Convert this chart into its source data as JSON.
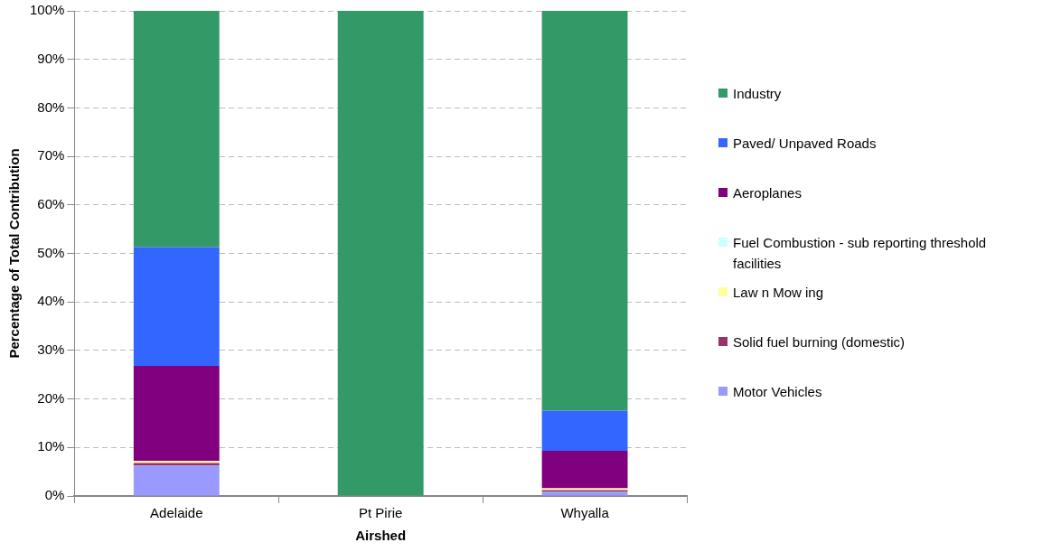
{
  "chart_data": {
    "type": "bar",
    "stacked": true,
    "xlabel": "Airshed",
    "ylabel": "Percentage of Total Contribution",
    "categories": [
      "Adelaide",
      "Pt Pirie",
      "Whyalla"
    ],
    "series": [
      {
        "name": "Motor Vehicles",
        "color": "#9999ff",
        "values": [
          6.3,
          0,
          0.9
        ]
      },
      {
        "name": "Solid fuel burning (domestic)",
        "color": "#993366",
        "values": [
          0.5,
          0,
          0.3
        ]
      },
      {
        "name": "Law n Mow ing",
        "color": "#ffff99",
        "values": [
          0.4,
          0,
          0.4
        ]
      },
      {
        "name": "Fuel Combustion - sub reporting threshold facilities",
        "color": "#ccffff",
        "values": [
          0,
          0,
          0
        ]
      },
      {
        "name": "Aeroplanes",
        "color": "#800080",
        "values": [
          19.6,
          0,
          7.7
        ]
      },
      {
        "name": "Paved/ Unpaved Roads",
        "color": "#3366ff",
        "values": [
          24.5,
          0,
          8.3
        ]
      },
      {
        "name": "Industry",
        "color": "#339966",
        "values": [
          48.7,
          100,
          82.4
        ]
      }
    ],
    "ylim": [
      0,
      100
    ],
    "yticks": [
      {
        "value": 0,
        "label": "0%"
      },
      {
        "value": 10,
        "label": "10%"
      },
      {
        "value": 20,
        "label": "20%"
      },
      {
        "value": 30,
        "label": "30%"
      },
      {
        "value": 40,
        "label": "40%"
      },
      {
        "value": 50,
        "label": "50%"
      },
      {
        "value": 60,
        "label": "60%"
      },
      {
        "value": 70,
        "label": "70%"
      },
      {
        "value": 80,
        "label": "80%"
      },
      {
        "value": 90,
        "label": "90%"
      },
      {
        "value": 100,
        "label": "100%"
      }
    ],
    "grid": "y",
    "legend": "right"
  }
}
